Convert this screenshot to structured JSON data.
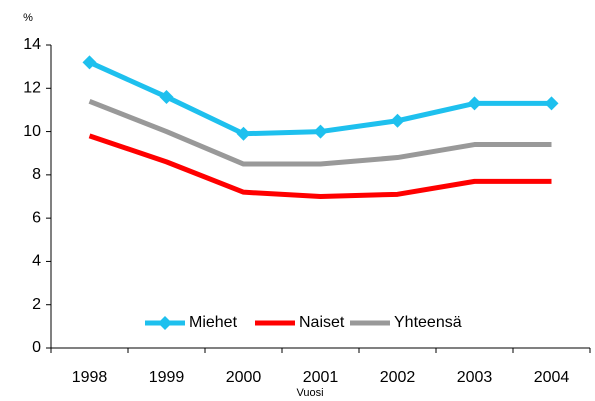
{
  "chart_data": {
    "type": "line",
    "y_label": "%",
    "x_label": "Vuosi",
    "categories": [
      "1998",
      "1999",
      "2000",
      "2001",
      "2002",
      "2003",
      "2004"
    ],
    "series": [
      {
        "name": "Miehet",
        "color": "#1ec0ee",
        "marker": "diamond",
        "values": [
          13.2,
          11.6,
          9.9,
          10.0,
          10.5,
          11.3,
          11.3
        ]
      },
      {
        "name": "Naiset",
        "color": "#ff0000",
        "values": [
          9.8,
          8.6,
          7.2,
          7.0,
          7.1,
          7.7,
          7.7
        ]
      },
      {
        "name": "Yhteensä",
        "color": "#999999",
        "values": [
          11.4,
          10.0,
          8.5,
          8.5,
          8.8,
          9.4,
          9.4
        ]
      }
    ],
    "ylim": [
      0,
      14
    ],
    "yticks": [
      0,
      2,
      4,
      6,
      8,
      10,
      12,
      14
    ],
    "grid": false,
    "legend": "bottom"
  }
}
